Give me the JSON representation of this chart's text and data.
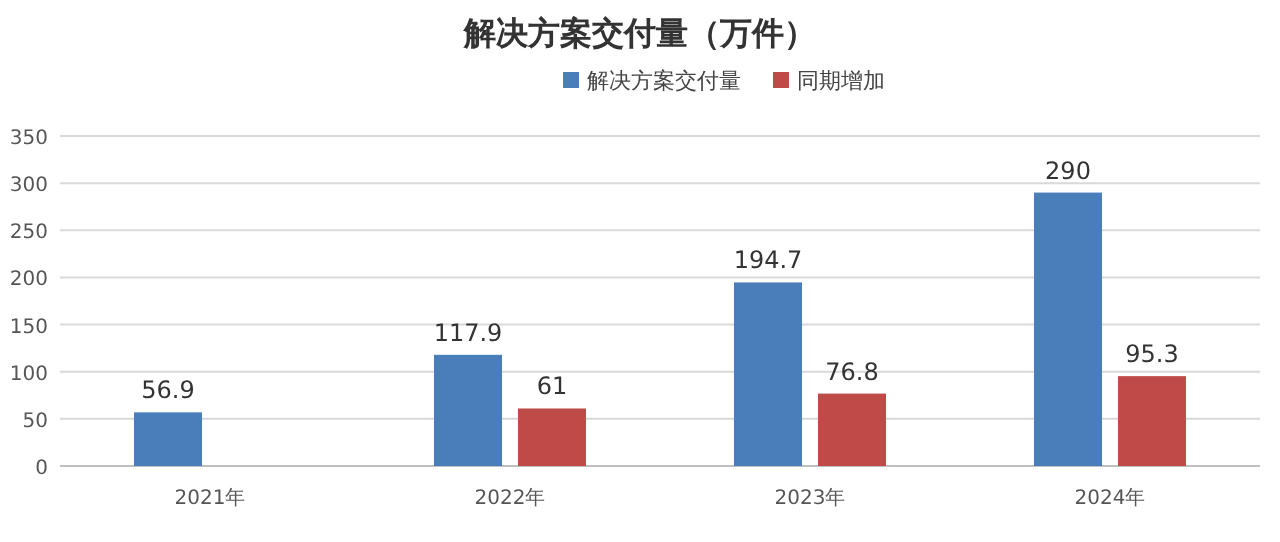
{
  "chart_data": {
    "type": "bar",
    "title": "解决方案交付量（万件）",
    "categories": [
      "2021年",
      "2022年",
      "2023年",
      "2024年"
    ],
    "series": [
      {
        "name": "解决方案交付量",
        "color": "#4a7ebb",
        "values": [
          56.9,
          117.9,
          194.7,
          290
        ]
      },
      {
        "name": "同期增加",
        "color": "#be4b48",
        "values": [
          null,
          61,
          76.8,
          95.3
        ]
      }
    ],
    "ylim": [
      0,
      350
    ],
    "yticks": [
      0,
      50,
      100,
      150,
      200,
      250,
      300,
      350
    ],
    "grid": "y",
    "legend": "top",
    "data_labels": true
  }
}
